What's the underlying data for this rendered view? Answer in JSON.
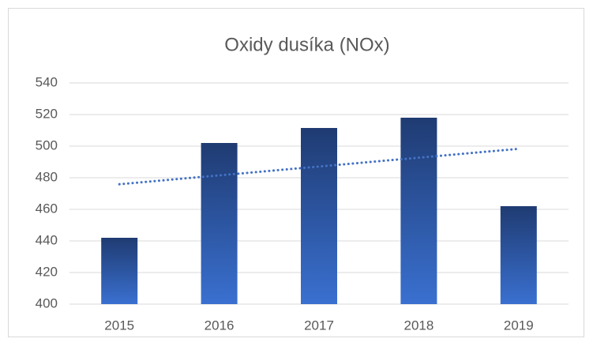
{
  "chart_data": {
    "type": "bar",
    "title": "Oxidy dusíka (NOx)",
    "categories": [
      "2015",
      "2016",
      "2017",
      "2018",
      "2019"
    ],
    "values": [
      442,
      502,
      511.5,
      518,
      462
    ],
    "gradient": [
      "#1f3b72",
      "#3a70d0"
    ],
    "ylim": [
      400,
      540
    ],
    "yticks": [
      400,
      420,
      440,
      460,
      480,
      500,
      520,
      540
    ],
    "grid": true,
    "trendline": true,
    "trendline_color": "#4472c4"
  }
}
